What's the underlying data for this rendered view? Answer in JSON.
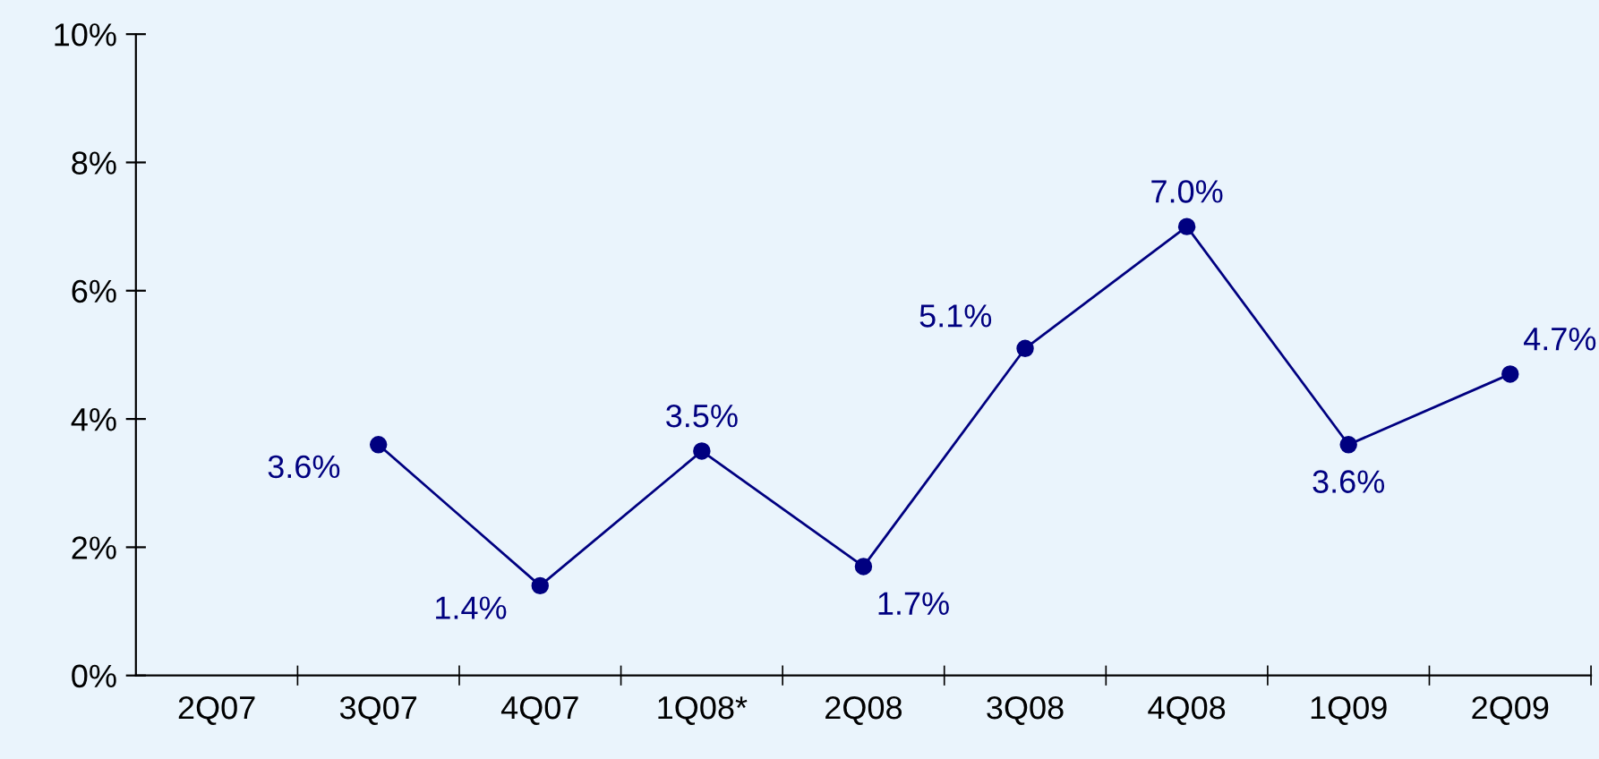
{
  "chart_data": {
    "type": "line",
    "categories": [
      "2Q07",
      "3Q07",
      "4Q07",
      "1Q08*",
      "2Q08",
      "3Q08",
      "4Q08",
      "1Q09",
      "2Q09"
    ],
    "series": [
      {
        "color": "#000080",
        "values": [
          null,
          3.6,
          1.4,
          3.5,
          1.7,
          5.1,
          7.0,
          3.6,
          4.7
        ],
        "value_labels": [
          null,
          "3.6%",
          "1.4%",
          "3.5%",
          "1.7%",
          "5.1%",
          "7.0%",
          "3.6%",
          "4.7%"
        ]
      }
    ],
    "ylim": [
      0,
      10
    ],
    "yticks": [
      {
        "value": 0,
        "label": "0%"
      },
      {
        "value": 2,
        "label": "2%"
      },
      {
        "value": 4,
        "label": "4%"
      },
      {
        "value": 6,
        "label": "6%"
      },
      {
        "value": 8,
        "label": "8%"
      },
      {
        "value": 10,
        "label": "10%"
      }
    ],
    "marker": "circle",
    "line_style": "solid",
    "grid": false
  }
}
